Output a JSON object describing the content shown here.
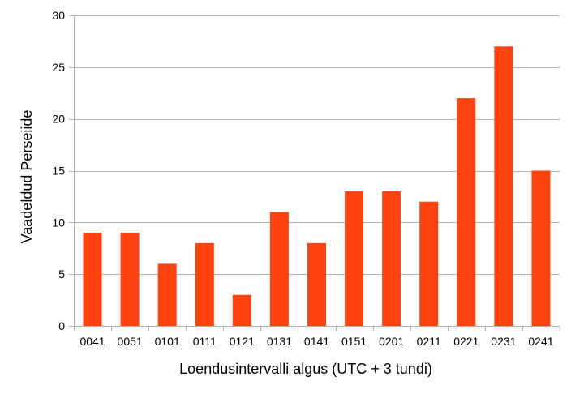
{
  "chart_data": {
    "type": "bar",
    "title": "",
    "xlabel": "Loendusintervalli algus  (UTC + 3 tundi)",
    "ylabel": "Vaadeldud Perseiide",
    "categories": [
      "0041",
      "0051",
      "0101",
      "0111",
      "0121",
      "0131",
      "0141",
      "0151",
      "0201",
      "0211",
      "0221",
      "0231",
      "0241"
    ],
    "values": [
      9,
      9,
      6,
      8,
      3,
      11,
      8,
      13,
      13,
      12,
      22,
      27,
      15
    ],
    "ylim": [
      0,
      30
    ],
    "yticks": [
      0,
      5,
      10,
      15,
      20,
      25,
      30
    ],
    "grid": true,
    "legend": "none",
    "colors": {
      "bar": "#ff420e",
      "grid": "#b3b3b3",
      "axis": "#b3b3b3"
    }
  }
}
